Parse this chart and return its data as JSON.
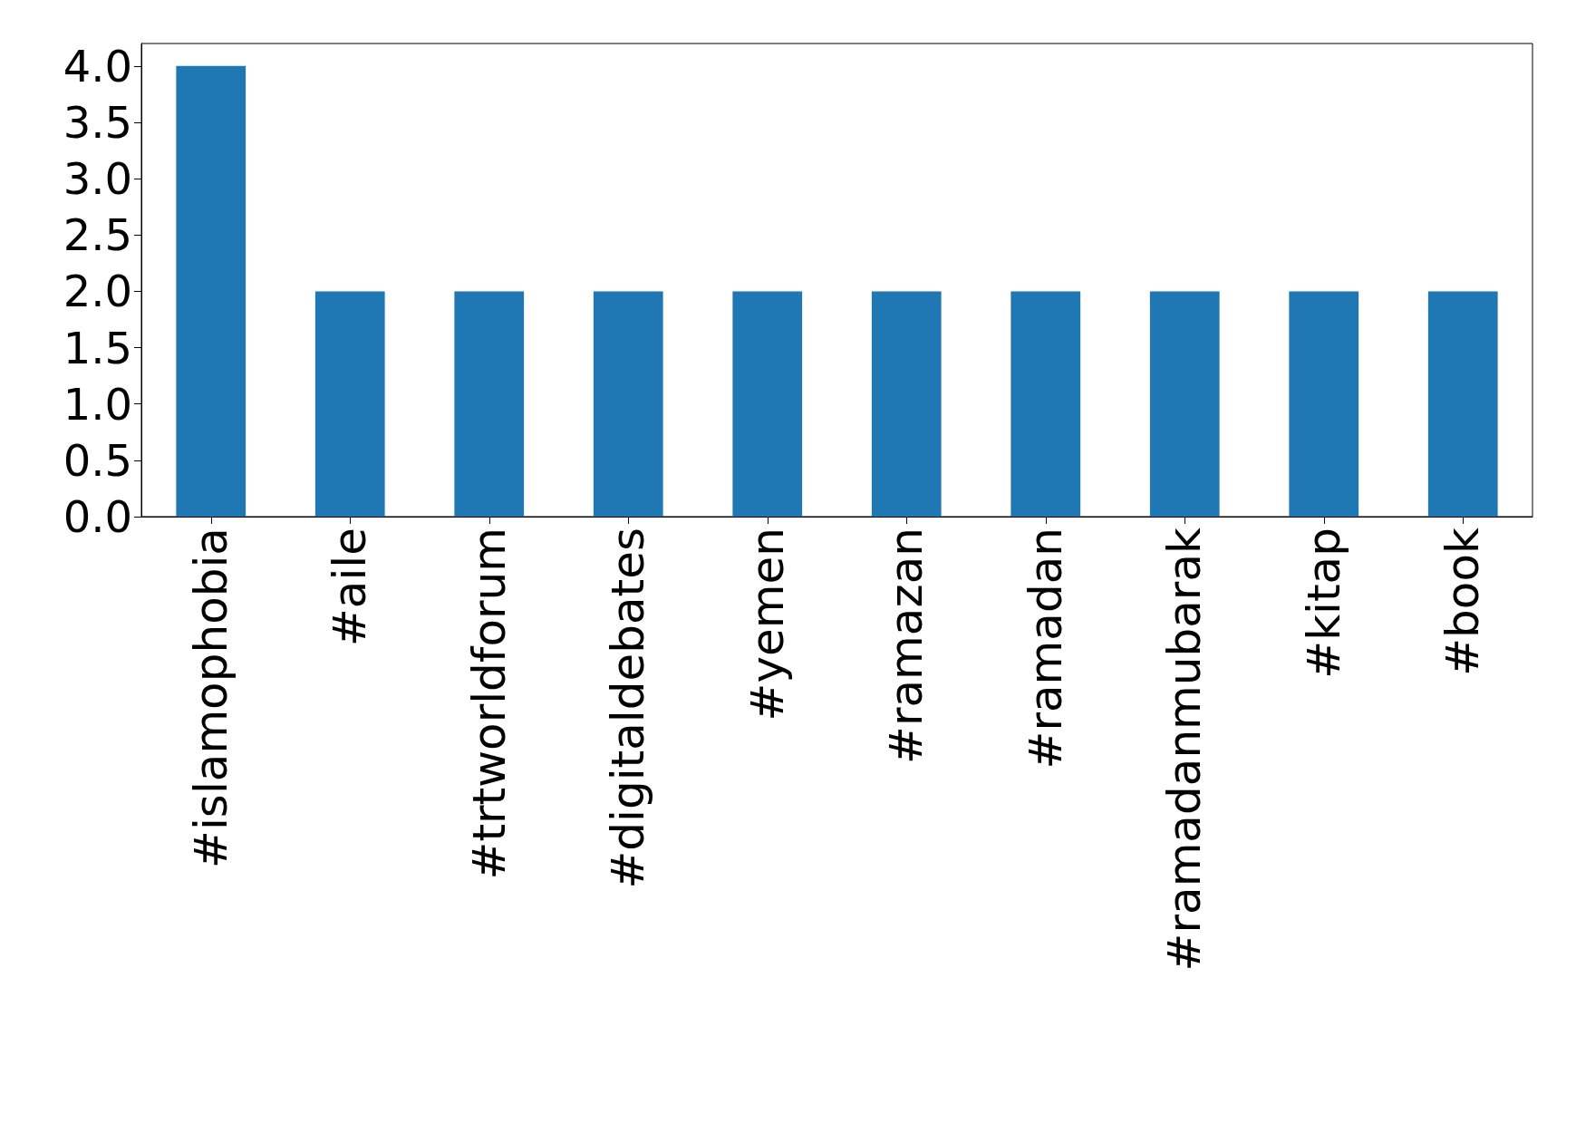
{
  "chart_data": {
    "type": "bar",
    "categories": [
      "#islamophobia",
      "#aile",
      "#trtworldforum",
      "#digitaldebates",
      "#yemen",
      "#ramazan",
      "#ramadan",
      "#ramadanmubarak",
      "#kitap",
      "#book"
    ],
    "values": [
      4,
      2,
      2,
      2,
      2,
      2,
      2,
      2,
      2,
      2
    ],
    "color": "#1f77b4",
    "ylim": [
      0,
      4.2
    ],
    "yticks": [
      {
        "value": 0,
        "label": "0.0"
      },
      {
        "value": 0.5,
        "label": "0.5"
      },
      {
        "value": 1,
        "label": "1.0"
      },
      {
        "value": 1.5,
        "label": "1.5"
      },
      {
        "value": 2,
        "label": "2.0"
      },
      {
        "value": 2.5,
        "label": "2.5"
      },
      {
        "value": 3,
        "label": "3.0"
      },
      {
        "value": 3.5,
        "label": "3.5"
      },
      {
        "value": 4,
        "label": "4.0"
      }
    ],
    "grid": false
  }
}
